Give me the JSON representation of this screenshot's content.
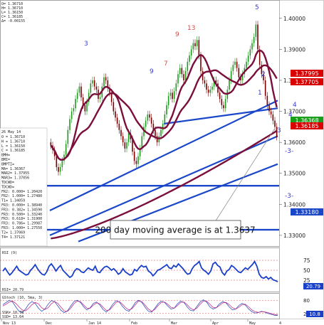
{
  "colors": {
    "up_candle": "#1f9a1f",
    "down_candle": "#7a0000",
    "trendline": "#1a47c9",
    "ma_line": "#7b0f3b",
    "rsi_line": "#1a3fc9",
    "stoch_k": "#1f3fbf",
    "stoch_d": "#c01a7a",
    "seq_count": "#d64a4a",
    "countdown": "#3a3ad0",
    "tag_red": "#d80000",
    "tag_green": "#1a9e1a",
    "tag_blue": "#1a47c9"
  },
  "header": {
    "lines": [
      "O= 1.36710",
      "H= 1.36710",
      "L= 1.36150",
      "C= 1.36185",
      "Δ= -0.00155"
    ]
  },
  "data_window": {
    "date": "26 May 14",
    "lines": [
      "O =            1.36710",
      "H =            1.36710",
      "L =            1.36150",
      "C =            1.36185",
      "BMH=",
      "BMI=",
      "BMPTI=",
      "MA=            1.36367",
      "MAR2=          1.37955",
      "MAR3=          1.37056",
      "TDCWD=",
      "TDCWD=",
      "FR2: 0.000=    1.20420",
      "FR2: 1.000=    1.27480",
      "T1=            1.34059",
      "FR3: 0.000=    1.38940",
      "FR3: 0.382=    1.34590",
      "FR3: 0.500=    1.33240",
      "FR3: 0.618=    1.31900",
      "FR3: 0.786=    1.29987",
      "FR3: 1.000=    1.27550",
      "T2=            1.37069",
      "T4=            1.37121"
    ]
  },
  "price_tags": [
    {
      "text": "1.37995",
      "color": "tag_red"
    },
    {
      "text": "1.37705",
      "color": "tag_red"
    },
    {
      "text": "1.36368",
      "color": "tag_green"
    },
    {
      "text": "1.36185",
      "color": "tag_red"
    },
    {
      "text": "1.33180",
      "color": "tag_blue"
    }
  ],
  "seq_labels": [
    "3",
    "5",
    "9",
    "9",
    "13",
    "7",
    "2",
    "1",
    "4",
    "3",
    "-3-",
    "-3-",
    "4"
  ],
  "annotation": {
    "text": "200 day moving average is at 1.3637"
  },
  "rsi": {
    "title": "RSI (9)",
    "value_label": "RSI= 20.79",
    "value_tag": "20.79",
    "ticks": [
      "75",
      "50",
      "25"
    ],
    "values": [
      48,
      55,
      46,
      38,
      44,
      52,
      60,
      50,
      46,
      42,
      38,
      40,
      50,
      56,
      64,
      54,
      46,
      40,
      38,
      46,
      60,
      66,
      58,
      48,
      56,
      62,
      50,
      44,
      38,
      32,
      36,
      48,
      54,
      52,
      46,
      44,
      50,
      56,
      52,
      50,
      60,
      46,
      44,
      52,
      58,
      60,
      56,
      50,
      54,
      48,
      40,
      44,
      54,
      46,
      42,
      38,
      40,
      52,
      48,
      56,
      62,
      58,
      60,
      48,
      44,
      36,
      42,
      50,
      52,
      56,
      60,
      64,
      56,
      54,
      62,
      58,
      66,
      60,
      54,
      46,
      40,
      42,
      54,
      62,
      66,
      72,
      56,
      50,
      46,
      40,
      48,
      66,
      70,
      62,
      58,
      44,
      38,
      48,
      52,
      62,
      58,
      52,
      46,
      44,
      50,
      56,
      52,
      58,
      64,
      72,
      60,
      40,
      32,
      30,
      34,
      28,
      32,
      26,
      24,
      21
    ]
  },
  "stoch": {
    "title": "GStoch (10, 5ma, 3)",
    "value_label_1": "SSK= 10.78",
    "value_label_2": "SSD= 13.64",
    "value_tag": "10.8",
    "ticks": [
      "80",
      "20"
    ],
    "k": [
      60,
      70,
      80,
      72,
      50,
      30,
      24,
      40,
      62,
      74,
      66,
      44,
      30,
      40,
      62,
      78,
      74,
      54,
      34,
      24,
      32,
      54,
      74,
      80,
      70,
      50,
      36,
      46,
      66,
      72,
      58,
      38,
      26,
      40,
      62,
      78,
      72,
      52,
      36,
      30,
      48,
      70,
      80,
      70,
      48,
      30,
      26,
      44,
      64,
      76,
      70,
      54,
      40,
      44,
      64,
      76,
      70,
      50,
      34,
      32,
      52,
      72,
      82,
      72,
      50,
      40,
      46,
      64,
      74,
      68,
      50,
      36,
      40,
      56,
      66,
      58,
      40,
      28,
      22,
      24,
      30,
      26,
      20,
      16,
      12,
      11
    ],
    "d": [
      54,
      62,
      72,
      76,
      66,
      50,
      36,
      32,
      44,
      60,
      70,
      64,
      46,
      38,
      46,
      64,
      74,
      66,
      48,
      32,
      30,
      44,
      64,
      76,
      74,
      58,
      44,
      44,
      58,
      68,
      64,
      48,
      34,
      36,
      52,
      70,
      74,
      62,
      46,
      36,
      42,
      60,
      76,
      74,
      58,
      40,
      30,
      38,
      56,
      70,
      72,
      62,
      48,
      44,
      56,
      70,
      72,
      60,
      44,
      36,
      44,
      62,
      76,
      76,
      62,
      48,
      46,
      56,
      68,
      70,
      60,
      46,
      40,
      48,
      60,
      62,
      50,
      36,
      28,
      25,
      28,
      27,
      24,
      19,
      15,
      13.6
    ]
  },
  "xaxis": {
    "labels": [
      "Nov 13",
      "Dec",
      "Jan 14",
      "Feb",
      "Mar",
      "Apr",
      "May"
    ],
    "edge_label": "4"
  },
  "chart_data": {
    "type": "candlestick",
    "instrument_hint": "daily",
    "y_axis": {
      "ticks": [
        1.4,
        1.39,
        1.38,
        1.37,
        1.36,
        1.35,
        1.34,
        1.33
      ],
      "ylim": [
        1.327,
        1.405
      ]
    },
    "closes": [
      1.359,
      1.3575,
      1.3555,
      1.352,
      1.3505,
      1.352,
      1.354,
      1.356,
      1.3595,
      1.364,
      1.3675,
      1.37,
      1.371,
      1.374,
      1.376,
      1.378,
      1.3745,
      1.372,
      1.37,
      1.373,
      1.376,
      1.379,
      1.38,
      1.378,
      1.377,
      1.374,
      1.3745,
      1.378,
      1.381,
      1.38,
      1.3775,
      1.376,
      1.373,
      1.37,
      1.368,
      1.366,
      1.364,
      1.362,
      1.36,
      1.358,
      1.36,
      1.363,
      1.361,
      1.357,
      1.354,
      1.353,
      1.3555,
      1.358,
      1.362,
      1.365,
      1.367,
      1.369,
      1.368,
      1.366,
      1.364,
      1.362,
      1.36,
      1.362,
      1.364,
      1.366,
      1.369,
      1.372,
      1.375,
      1.376,
      1.374,
      1.3765,
      1.379,
      1.382,
      1.384,
      1.382,
      1.38,
      1.383,
      1.386,
      1.388,
      1.39,
      1.392,
      1.391,
      1.393,
      1.388,
      1.383,
      1.38,
      1.379,
      1.377,
      1.376,
      1.377,
      1.378,
      1.38,
      1.379,
      1.376,
      1.374,
      1.372,
      1.371,
      1.374,
      1.377,
      1.38,
      1.383,
      1.385,
      1.386,
      1.384,
      1.381,
      1.38,
      1.382,
      1.384,
      1.386,
      1.388,
      1.39,
      1.392,
      1.394,
      1.398,
      1.39,
      1.385,
      1.382,
      1.38,
      1.375,
      1.372,
      1.37,
      1.369,
      1.367,
      1.365,
      1.36185
    ],
    "moving_averages": [
      {
        "name": "MA",
        "value": 1.36367
      },
      {
        "name": "MAR2",
        "value": 1.37955
      },
      {
        "name": "MAR3",
        "value": 1.37056
      }
    ],
    "horizontal_levels": [
      1.346,
      1.3318
    ],
    "ma200_latest": 1.3637,
    "x_labels": [
      "Nov 13",
      "Dec",
      "Jan 14",
      "Feb",
      "Mar",
      "Apr",
      "May"
    ]
  }
}
